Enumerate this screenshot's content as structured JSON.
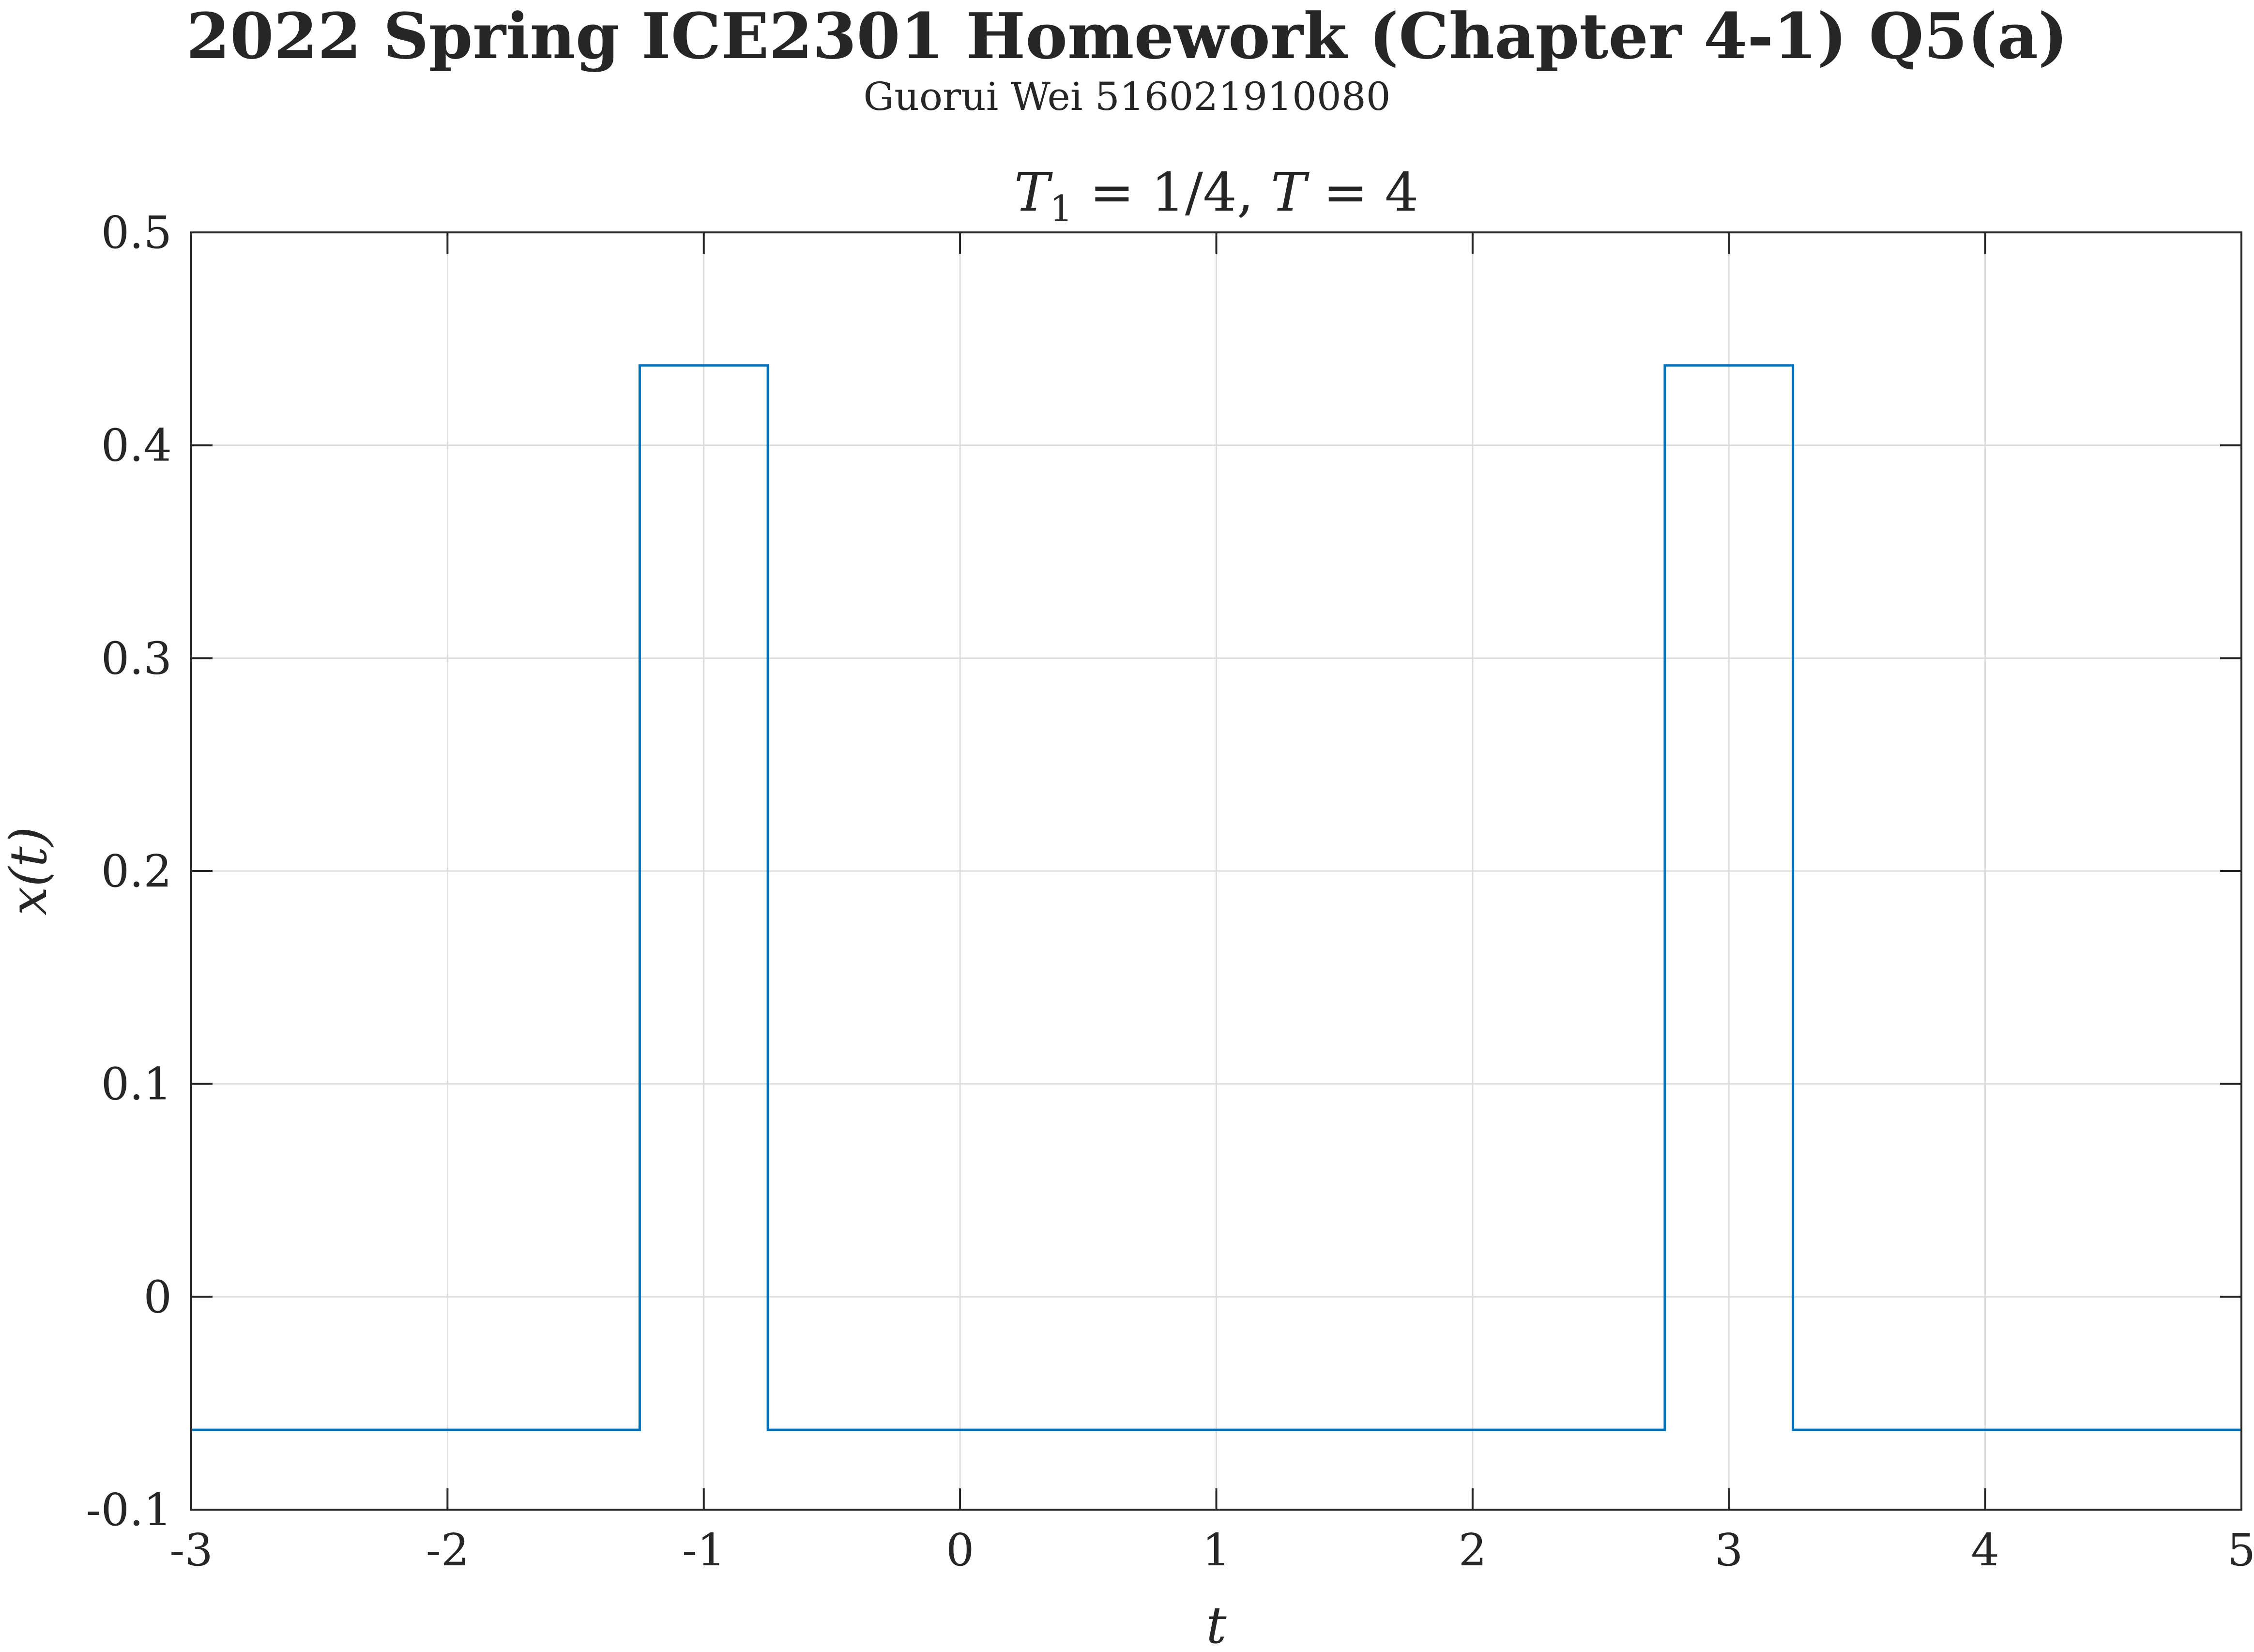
{
  "figure": {
    "suptitle": "2022 Spring ICE2301 Homework (Chapter 4-1) Q5(a)",
    "subtitle": "Guorui Wei 516021910080"
  },
  "chart_data": {
    "type": "line",
    "title": "T₁ = 1/4, T = 4",
    "title_parts": {
      "a": "T",
      "sub": "1",
      "b": " = 1/4, ",
      "c": "T",
      "d": " = 4"
    },
    "xlabel": "t",
    "ylabel": "x(t)",
    "xlim": [
      -3,
      5
    ],
    "ylim": [
      -0.1,
      0.5
    ],
    "xticks": [
      -3,
      -2,
      -1,
      0,
      1,
      2,
      3,
      4,
      5
    ],
    "xtick_labels": [
      "-3",
      "-2",
      "-1",
      "0",
      "1",
      "2",
      "3",
      "4",
      "5"
    ],
    "yticks": [
      -0.1,
      0,
      0.1,
      0.2,
      0.3,
      0.4,
      0.5
    ],
    "ytick_labels": [
      "-0.1",
      "0",
      "0.1",
      "0.2",
      "0.3",
      "0.4",
      "0.5"
    ],
    "grid": true,
    "series": [
      {
        "color": "#0072BD",
        "x": [
          -3,
          -1.25,
          -1.25,
          -0.75,
          -0.75,
          2.75,
          2.75,
          3.25,
          3.25,
          5
        ],
        "y": [
          -0.0625,
          -0.0625,
          0.4375,
          0.4375,
          -0.0625,
          -0.0625,
          0.4375,
          0.4375,
          -0.0625,
          -0.0625
        ]
      }
    ]
  }
}
